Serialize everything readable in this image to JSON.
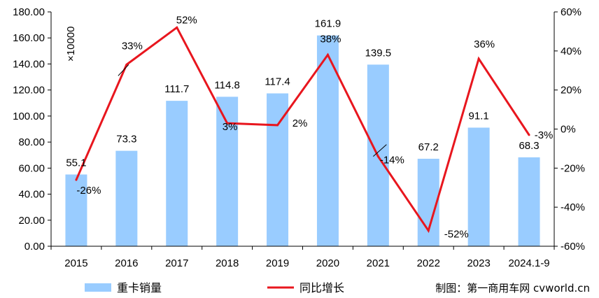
{
  "chart_data": {
    "type": "bar",
    "categories": [
      "2015",
      "2016",
      "2017",
      "2018",
      "2019",
      "2020",
      "2021",
      "2022",
      "2023",
      "2024.1-9"
    ],
    "series": [
      {
        "name": "重卡销量",
        "type": "bar",
        "axis": "left",
        "values": [
          55.1,
          73.3,
          111.7,
          114.8,
          117.4,
          161.9,
          139.5,
          67.2,
          91.1,
          68.3
        ],
        "labels": [
          "55.1",
          "73.3",
          "111.7",
          "114.8",
          "117.4",
          "161.9",
          "139.5",
          "67.2",
          "91.1",
          "68.3"
        ],
        "color": "#99CCFF"
      },
      {
        "name": "同比增长",
        "type": "line",
        "axis": "right",
        "values": [
          -26,
          33,
          52,
          3,
          2,
          38,
          -14,
          -52,
          36,
          -3
        ],
        "labels": [
          "-26%",
          "33%",
          "52%",
          "3%",
          "2%",
          "38%",
          "-14%",
          "-52%",
          "36%",
          "-3%"
        ],
        "color": "#E8161E"
      }
    ],
    "y_left": {
      "range": [
        0,
        180
      ],
      "ticks": [
        "0.00",
        "20.00",
        "40.00",
        "60.00",
        "80.00",
        "100.00",
        "120.00",
        "140.00",
        "160.00",
        "180.00"
      ],
      "unit": "×10000"
    },
    "y_right": {
      "range": [
        -60,
        60
      ],
      "ticks": [
        "-60%",
        "-40%",
        "-20%",
        "0%",
        "20%",
        "40%",
        "60%"
      ]
    },
    "grid": false,
    "legend_position": "bottom"
  },
  "credit": "制图：第一商用车网 cvworld.cn"
}
